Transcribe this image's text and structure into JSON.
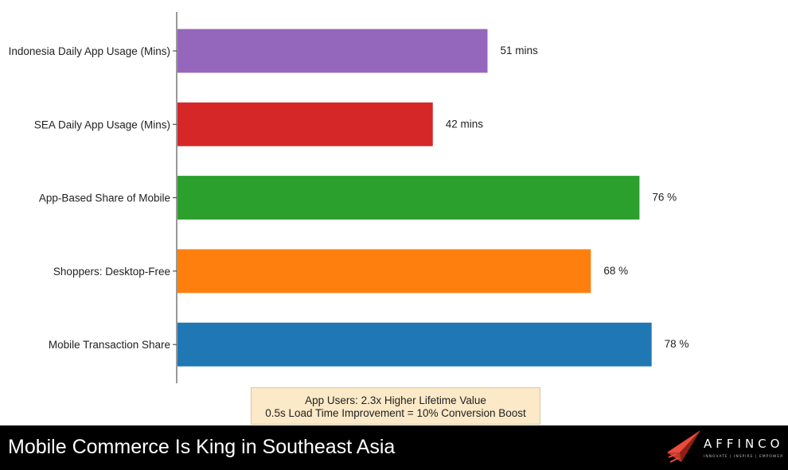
{
  "chart_data": {
    "type": "bar",
    "orientation": "horizontal",
    "categories": [
      "Indonesia Daily App Usage (Mins)",
      "SEA Daily App Usage (Mins)",
      "App-Based Share of Mobile",
      "Shoppers: Desktop-Free",
      "Mobile Transaction Share"
    ],
    "values": [
      51,
      42,
      76,
      68,
      78
    ],
    "value_labels": [
      "51 mins",
      "42 mins",
      "76 %",
      "68 %",
      "78 %"
    ],
    "colors": [
      "#9467bd",
      "#d62728",
      "#2ca02c",
      "#ff7f0e",
      "#1f77b4"
    ],
    "xlim": [
      0,
      100
    ],
    "grid": false,
    "legend": "none",
    "title": "",
    "xlabel": "",
    "ylabel": ""
  },
  "note": {
    "line1": "App Users: 2.3x Higher Lifetime Value",
    "line2": "0.5s Load Time Improvement = 10% Conversion Boost"
  },
  "footer": {
    "title": "Mobile Commerce Is King in Southeast Asia",
    "logo_name": "AFFINCO",
    "logo_tagline": "INNOVATE | INSPIRE | EMPOWER"
  }
}
